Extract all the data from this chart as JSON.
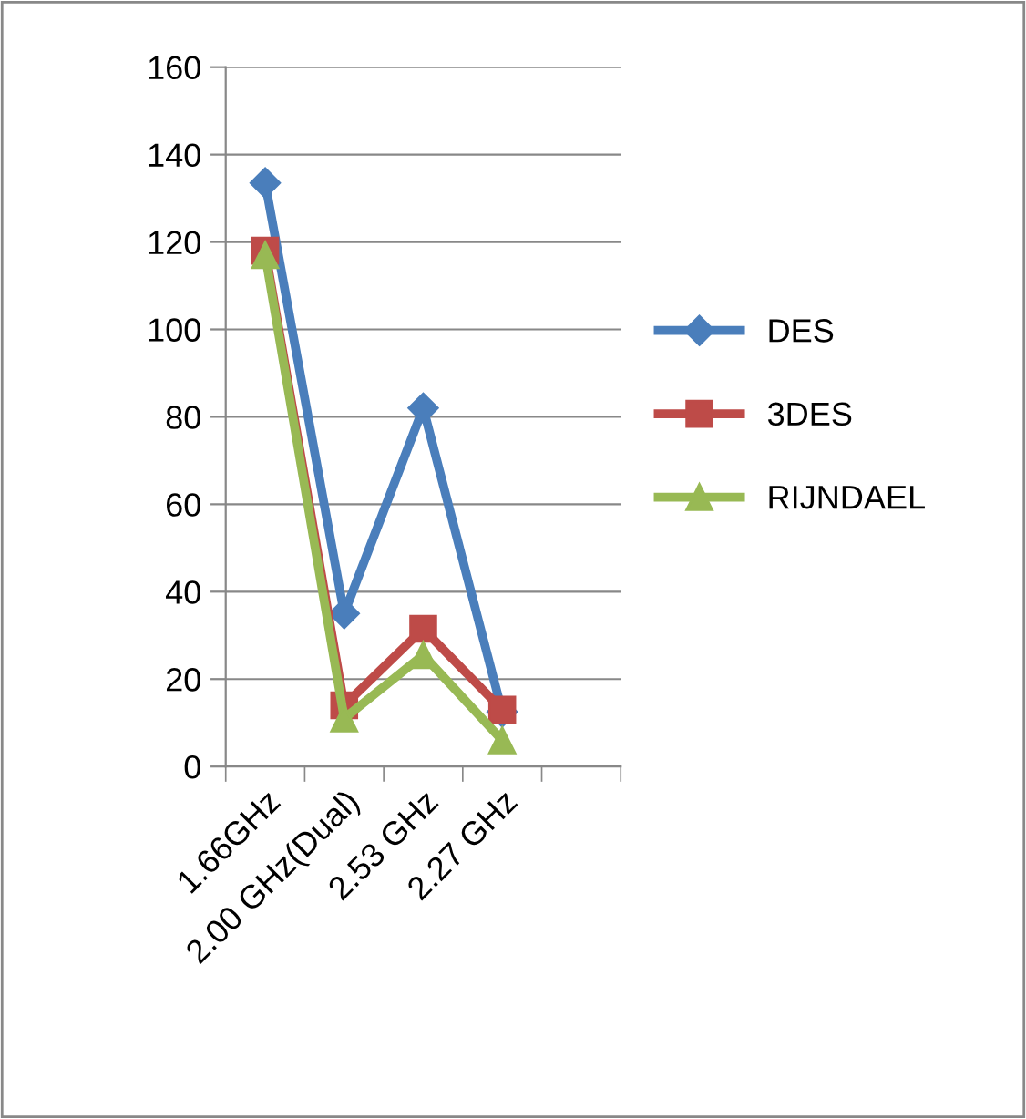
{
  "chart_data": {
    "type": "line",
    "categories": [
      "1.66GHz",
      "2.00 GHz(Dual)",
      "2.53 GHz",
      "2.27 GHz",
      null
    ],
    "series": [
      {
        "name": "DES",
        "color": "#4a7ebb",
        "marker": "diamond",
        "values": [
          133.5,
          35,
          82,
          12.5,
          null
        ]
      },
      {
        "name": "3DES",
        "color": "#be4b48",
        "marker": "square",
        "values": [
          118,
          14,
          31.5,
          13,
          null
        ]
      },
      {
        "name": "RIJNDAEL",
        "color": "#98b954",
        "marker": "triangle",
        "values": [
          117,
          11,
          25.5,
          6,
          null
        ]
      }
    ],
    "ylim": [
      0,
      160
    ],
    "yticks": [
      0,
      20,
      40,
      60,
      80,
      100,
      120,
      140,
      160
    ],
    "grid": "y",
    "legend": "right"
  }
}
